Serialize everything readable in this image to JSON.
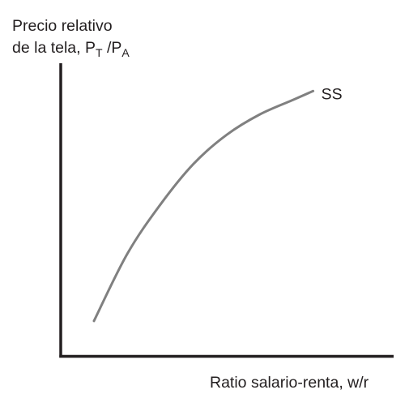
{
  "chart_data": {
    "type": "line",
    "ylabel": {
      "line1": "Precio relativo",
      "line2_prefix": "de la tela, P",
      "sub1": "T",
      "sep": " /P",
      "sub2": "A"
    },
    "xlabel": "Ratio salario-renta, w/r",
    "xlim": [
      0,
      1
    ],
    "ylim": [
      0,
      1
    ],
    "series": [
      {
        "name": "SS",
        "color": "#808080",
        "x": [
          0.1,
          0.2,
          0.3,
          0.4,
          0.5,
          0.6,
          0.7,
          0.76
        ],
        "y": [
          0.12,
          0.35,
          0.52,
          0.66,
          0.76,
          0.83,
          0.88,
          0.91
        ]
      }
    ]
  }
}
